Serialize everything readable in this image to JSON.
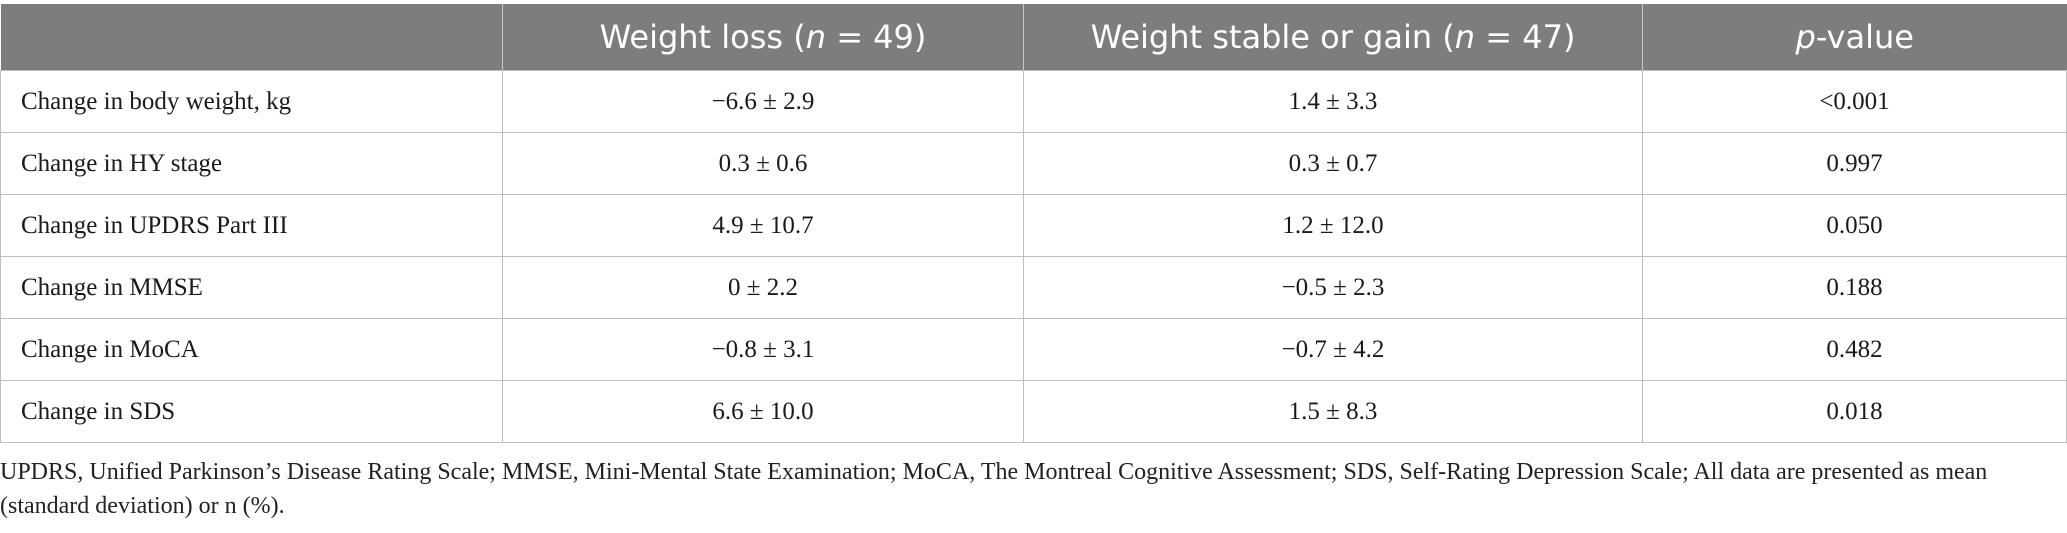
{
  "table": {
    "headers": {
      "col0": "",
      "col1": {
        "pre": "Weight loss (",
        "n": "n",
        "post": " = 49)"
      },
      "col2": {
        "pre": "Weight stable or gain (",
        "n": "n",
        "post": " = 47)"
      },
      "col3": {
        "p": "p",
        "post": "-value"
      }
    },
    "rows": [
      {
        "label": "Change in body weight, kg",
        "loss": "−6.6 ± 2.9",
        "stable": "1.4 ± 3.3",
        "p": "<0.001"
      },
      {
        "label": "Change in HY stage",
        "loss": "0.3 ± 0.6",
        "stable": "0.3 ± 0.7",
        "p": "0.997"
      },
      {
        "label": "Change in UPDRS Part III",
        "loss": "4.9 ± 10.7",
        "stable": "1.2 ± 12.0",
        "p": "0.050"
      },
      {
        "label": "Change in MMSE",
        "loss": "0 ± 2.2",
        "stable": "−0.5 ± 2.3",
        "p": "0.188"
      },
      {
        "label": "Change in MoCA",
        "loss": "−0.8 ± 3.1",
        "stable": "−0.7 ± 4.2",
        "p": "0.482"
      },
      {
        "label": "Change in SDS",
        "loss": "6.6 ± 10.0",
        "stable": "1.5 ± 8.3",
        "p": "0.018"
      }
    ],
    "colors": {
      "header_bg": "#7d7e7c",
      "header_text": "#ffffff",
      "grid": "#bdbdbd"
    }
  },
  "footnote": "UPDRS, Unified Parkinson’s Disease Rating Scale; MMSE, Mini-Mental State Examination; MoCA, The Montreal Cognitive Assessment; SDS, Self-Rating Depression Scale; All data are presented as mean (standard deviation) or n (%)."
}
